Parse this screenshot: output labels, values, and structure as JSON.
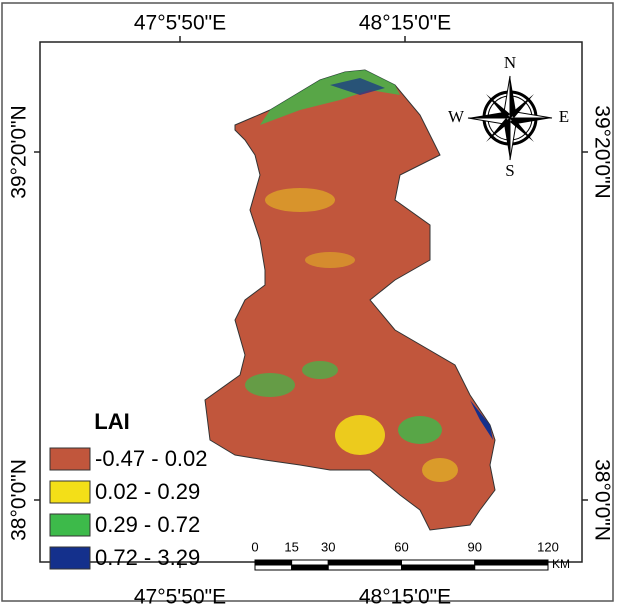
{
  "map": {
    "top_labels": [
      "47°5'50\"E",
      "48°15'0\"E"
    ],
    "bottom_labels": [
      "47°5'50\"E",
      "48°15'0\"E"
    ],
    "left_labels": [
      "39°20'0\"N",
      "38°0'0\"N"
    ],
    "right_labels": [
      "39°20'0\"N",
      "38°0'0\"N"
    ],
    "compass": {
      "n": "N",
      "e": "E",
      "s": "S",
      "w": "W"
    },
    "legend": {
      "title": "LAI",
      "items": [
        {
          "label": "-0.47 - 0.02",
          "color": "#c1563c"
        },
        {
          "label": "0.02 - 0.29",
          "color": "#f3df18"
        },
        {
          "label": "0.29 - 0.72",
          "color": "#3dba4a"
        },
        {
          "label": "0.72 - 3.29",
          "color": "#14308c"
        }
      ]
    },
    "scale_bar": {
      "ticks": [
        0,
        15,
        30,
        60,
        90,
        120
      ],
      "unit": "KM"
    }
  }
}
